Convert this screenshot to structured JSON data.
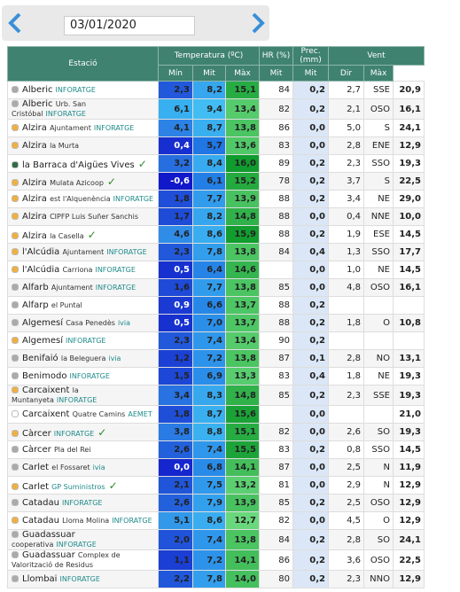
{
  "date": "03/01/2020",
  "table": {
    "header": {
      "station": "Estació",
      "temperature": "Temperatura (ºC)",
      "humidity": "HR (%)",
      "precipitation": "Prec. (mm)",
      "wind": "Vent",
      "sub": [
        "Mín",
        "Mit",
        "Màx",
        "Mit",
        "Mit",
        "Dir",
        "Màx"
      ]
    },
    "rows": [
      {
        "name": "Alberic",
        "source": "INFORATGE",
        "dot": "#aaaaaa",
        "cells": [
          "2,3",
          "8,2",
          "15,1",
          "84",
          "0,2",
          "2,7",
          "SSE",
          "20,9"
        ]
      },
      {
        "name": "Alberic",
        "place": "Urb. San Cristóbal",
        "source": "INFORATGE",
        "dot": "#aaaaaa",
        "cells": [
          "6,1",
          "9,4",
          "13,4",
          "82",
          "0,2",
          "2,1",
          "OSO",
          "16,1"
        ]
      },
      {
        "name": "Alzira",
        "place": "Ajuntament",
        "source": "INFORATGE",
        "dot": "#f0b040",
        "cells": [
          "4,1",
          "8,7",
          "13,8",
          "86",
          "0,0",
          "5,0",
          "S",
          "24,1"
        ]
      },
      {
        "name": "Alzira",
        "place": "la Murta",
        "dot": "#f0b040",
        "cells": [
          "0,4",
          "5,7",
          "13,6",
          "83",
          "0,0",
          "2,8",
          "ENE",
          "12,9"
        ]
      },
      {
        "name": "la Barraca d'Aigües Vives",
        "check": true,
        "dot": "#2f6b45",
        "cells": [
          "3,2",
          "8,4",
          "16,0",
          "89",
          "0,2",
          "2,3",
          "SSO",
          "19,3"
        ]
      },
      {
        "name": "Alzira",
        "place": "Mulata Azicoop",
        "check": true,
        "dot": "#f0b040",
        "cells": [
          "-0,6",
          "6,1",
          "15,2",
          "78",
          "0,2",
          "3,7",
          "S",
          "22,5"
        ]
      },
      {
        "name": "Alzira",
        "place": "est l'Alquenència",
        "source": "INFORATGE",
        "dot": "#f0b040",
        "cells": [
          "1,8",
          "7,7",
          "13,9",
          "88",
          "0,2",
          "3,4",
          "NE",
          "29,0"
        ]
      },
      {
        "name": "Alzira",
        "place": "CIPFP Luis Suñer Sanchis",
        "dot": "#f0b040",
        "cells": [
          "1,7",
          "8,2",
          "14,8",
          "88",
          "0,0",
          "0,4",
          "NNE",
          "10,0"
        ]
      },
      {
        "name": "Alzira",
        "place": "la Casella",
        "check": true,
        "dot": "#f0b040",
        "cells": [
          "4,6",
          "8,6",
          "15,9",
          "88",
          "0,2",
          "1,9",
          "ESE",
          "14,5"
        ]
      },
      {
        "name": "l'Alcúdia",
        "place": "Ajuntament",
        "source": "INFORATGE",
        "dot": "#f0b040",
        "cells": [
          "2,3",
          "7,8",
          "13,8",
          "84",
          "0,4",
          "1,3",
          "SSO",
          "17,7"
        ]
      },
      {
        "name": "l'Alcúdia",
        "place": "Carriona",
        "source": "INFORATGE",
        "dot": "#f0b040",
        "cells": [
          "0,5",
          "6,4",
          "14,6",
          null,
          "0,0",
          "1,0",
          "NE",
          "14,5"
        ]
      },
      {
        "name": "Alfarb",
        "place": "Ajuntament",
        "source": "INFORATGE",
        "dot": "#aaaaaa",
        "cells": [
          "1,6",
          "7,7",
          "13,8",
          "85",
          "0,0",
          "4,8",
          "OSO",
          "16,1"
        ]
      },
      {
        "name": "Alfarp",
        "place": "el Puntal",
        "dot": "#aaaaaa",
        "cells": [
          "0,9",
          "6,6",
          "13,7",
          "88",
          "0,2",
          null,
          null,
          null
        ]
      },
      {
        "name": "Algemesí",
        "place": "Casa Penedès",
        "source": "ivia",
        "dot": "#aaaaaa",
        "cells": [
          "0,5",
          "7,0",
          "13,7",
          "88",
          "0,2",
          "1,8",
          "O",
          "10,8"
        ]
      },
      {
        "name": "Algemesí",
        "source": "INFORATGE",
        "dot": "#f0b040",
        "cells": [
          "2,3",
          "7,4",
          "13,4",
          "90",
          "0,2",
          null,
          null,
          null
        ]
      },
      {
        "name": "Benifaió",
        "place": "la Beleguera",
        "source": "ivia",
        "dot": "#aaaaaa",
        "cells": [
          "1,2",
          "7,2",
          "13,8",
          "87",
          "0,1",
          "2,8",
          "NO",
          "13,1"
        ]
      },
      {
        "name": "Benimodo",
        "source": "INFORATGE",
        "dot": "#aaaaaa",
        "cells": [
          "1,5",
          "6,9",
          "13,3",
          "83",
          "0,4",
          "1,8",
          "NE",
          "19,3"
        ]
      },
      {
        "name": "Carcaixent",
        "place": "la Muntanyeta",
        "source": "INFORATGE",
        "dot": "#f0b040",
        "cells": [
          "3,4",
          "8,3",
          "14,8",
          "85",
          "0,2",
          "2,3",
          "SSE",
          "19,3"
        ]
      },
      {
        "name": "Carcaixent",
        "place": "Quatre Camins",
        "source": "AEMET",
        "dot": "#ffffff",
        "cells": [
          "1,8",
          "8,7",
          "15,6",
          null,
          "0,0",
          null,
          null,
          "21,0"
        ]
      },
      {
        "name": "Càrcer",
        "source": "INFORATGE",
        "check": true,
        "dot": "#f0b040",
        "cells": [
          "3,8",
          "8,8",
          "15,1",
          "82",
          "0,0",
          "2,6",
          "SO",
          "19,3"
        ]
      },
      {
        "name": "Càrcer",
        "place": "Pla del Rei",
        "dot": "#aaaaaa",
        "cells": [
          "2,6",
          "7,4",
          "15,5",
          "83",
          "0,2",
          "0,8",
          "SSO",
          "14,5"
        ]
      },
      {
        "name": "Carlet",
        "place": "el Fossaret",
        "source": "ivia",
        "dot": "#aaaaaa",
        "cells": [
          "0,0",
          "6,8",
          "14,1",
          "87",
          "0,0",
          "2,5",
          "N",
          "11,9"
        ]
      },
      {
        "name": "Carlet",
        "source": "GP Suministros",
        "check": true,
        "dot": "#f0b040",
        "cells": [
          "2,1",
          "7,5",
          "13,2",
          "81",
          "0,0",
          "2,9",
          "N",
          "12,9"
        ]
      },
      {
        "name": "Catadau",
        "source": "INFORATGE",
        "dot": "#aaaaaa",
        "cells": [
          "2,6",
          "7,9",
          "13,9",
          "85",
          "0,2",
          "2,5",
          "OSO",
          "12,9"
        ]
      },
      {
        "name": "Catadau",
        "place": "Lloma Molina",
        "source": "INFORATGE",
        "dot": "#f0b040",
        "cells": [
          "5,1",
          "8,6",
          "12,7",
          "82",
          "0,0",
          "4,5",
          "O",
          "12,9"
        ]
      },
      {
        "name": "Guadassuar",
        "place": "cooperativa",
        "source": "INFORATGE",
        "dot": "#aaaaaa",
        "cells": [
          "2,0",
          "7,4",
          "13,8",
          "84",
          "0,2",
          "2,8",
          "SO",
          "24,1"
        ]
      },
      {
        "name": "Guadassuar",
        "place": "Complex de Valorització de Residus",
        "dot": "#aaaaaa",
        "cells": [
          "1,1",
          "7,2",
          "14,1",
          "86",
          "0,2",
          "3,6",
          "OSO",
          "22,5"
        ]
      },
      {
        "name": "Llombai",
        "source": "INFORATGE",
        "dot": "#aaaaaa",
        "cells": [
          "2,2",
          "7,8",
          "14,0",
          "80",
          "0,2",
          "2,3",
          "NNO",
          "12,9"
        ]
      }
    ]
  }
}
